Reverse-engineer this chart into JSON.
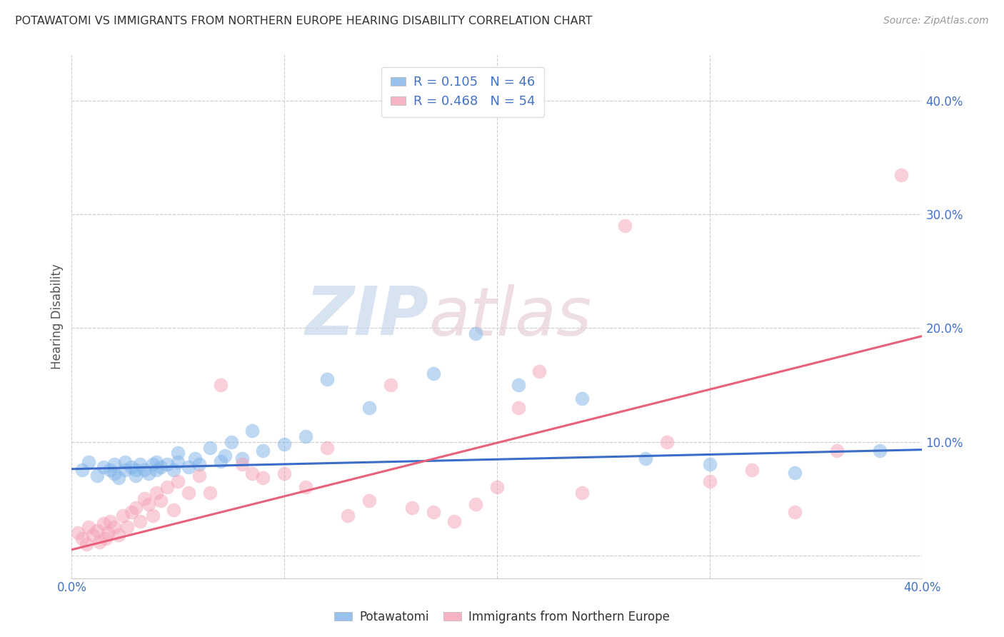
{
  "title": "POTAWATOMI VS IMMIGRANTS FROM NORTHERN EUROPE HEARING DISABILITY CORRELATION CHART",
  "source": "Source: ZipAtlas.com",
  "ylabel": "Hearing Disability",
  "xlim": [
    0.0,
    0.4
  ],
  "ylim": [
    -0.02,
    0.44
  ],
  "ytick_values": [
    0.0,
    0.1,
    0.2,
    0.3,
    0.4
  ],
  "xtick_values": [
    0.0,
    0.1,
    0.2,
    0.3,
    0.4
  ],
  "legend_label1_r": "0.105",
  "legend_label1_n": "46",
  "legend_label2_r": "0.468",
  "legend_label2_n": "54",
  "color_blue": "#7EB3E8",
  "color_pink": "#F4A0B5",
  "color_blue_line": "#3B6CC7",
  "color_pink_line": "#E8607A",
  "color_axis_label": "#4472C4",
  "background_color": "#FFFFFF",
  "watermark_zip": "ZIP",
  "watermark_atlas": "atlas",
  "blue_line_x": [
    0.0,
    0.4
  ],
  "blue_line_y": [
    0.076,
    0.093
  ],
  "pink_line_x": [
    0.0,
    0.4
  ],
  "pink_line_y": [
    0.005,
    0.193
  ],
  "blue_x": [
    0.005,
    0.008,
    0.012,
    0.015,
    0.018,
    0.02,
    0.02,
    0.022,
    0.025,
    0.025,
    0.028,
    0.03,
    0.03,
    0.032,
    0.034,
    0.036,
    0.038,
    0.04,
    0.04,
    0.042,
    0.045,
    0.048,
    0.05,
    0.05,
    0.055,
    0.058,
    0.06,
    0.065,
    0.07,
    0.072,
    0.075,
    0.08,
    0.085,
    0.09,
    0.1,
    0.11,
    0.12,
    0.14,
    0.17,
    0.19,
    0.21,
    0.24,
    0.27,
    0.3,
    0.34,
    0.38
  ],
  "blue_y": [
    0.075,
    0.082,
    0.07,
    0.078,
    0.075,
    0.072,
    0.08,
    0.068,
    0.075,
    0.082,
    0.078,
    0.07,
    0.075,
    0.08,
    0.075,
    0.072,
    0.08,
    0.075,
    0.082,
    0.078,
    0.08,
    0.075,
    0.082,
    0.09,
    0.078,
    0.085,
    0.08,
    0.095,
    0.083,
    0.088,
    0.1,
    0.085,
    0.11,
    0.092,
    0.098,
    0.105,
    0.155,
    0.13,
    0.16,
    0.195,
    0.15,
    0.138,
    0.085,
    0.08,
    0.073,
    0.092
  ],
  "pink_x": [
    0.003,
    0.005,
    0.007,
    0.008,
    0.01,
    0.012,
    0.013,
    0.015,
    0.016,
    0.017,
    0.018,
    0.02,
    0.022,
    0.024,
    0.026,
    0.028,
    0.03,
    0.032,
    0.034,
    0.036,
    0.038,
    0.04,
    0.042,
    0.045,
    0.048,
    0.05,
    0.055,
    0.06,
    0.065,
    0.07,
    0.08,
    0.085,
    0.09,
    0.1,
    0.11,
    0.12,
    0.13,
    0.14,
    0.15,
    0.16,
    0.17,
    0.18,
    0.19,
    0.2,
    0.21,
    0.22,
    0.24,
    0.26,
    0.28,
    0.3,
    0.32,
    0.34,
    0.36,
    0.39
  ],
  "pink_y": [
    0.02,
    0.015,
    0.01,
    0.025,
    0.018,
    0.022,
    0.012,
    0.028,
    0.015,
    0.02,
    0.03,
    0.025,
    0.018,
    0.035,
    0.025,
    0.038,
    0.042,
    0.03,
    0.05,
    0.045,
    0.035,
    0.055,
    0.048,
    0.06,
    0.04,
    0.065,
    0.055,
    0.07,
    0.055,
    0.15,
    0.08,
    0.072,
    0.068,
    0.072,
    0.06,
    0.095,
    0.035,
    0.048,
    0.15,
    0.042,
    0.038,
    0.03,
    0.045,
    0.06,
    0.13,
    0.162,
    0.055,
    0.29,
    0.1,
    0.065,
    0.075,
    0.038,
    0.092,
    0.335
  ]
}
